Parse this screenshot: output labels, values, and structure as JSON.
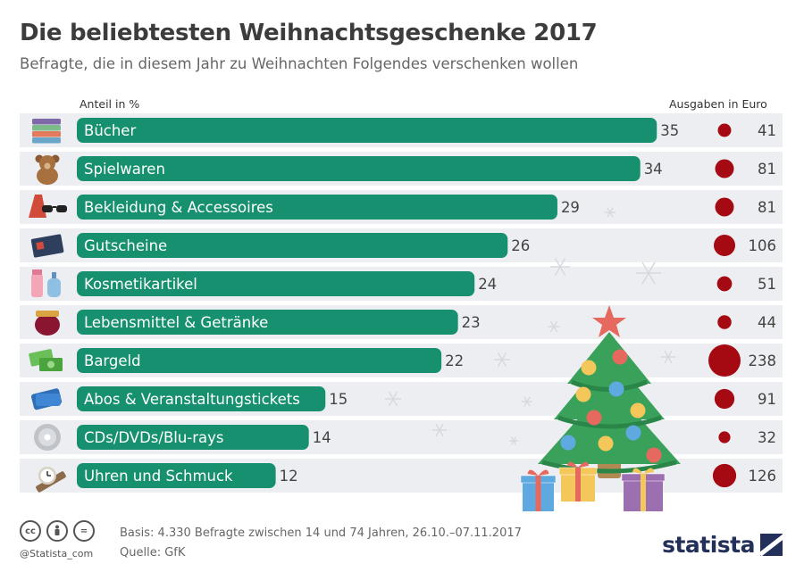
{
  "header": {
    "title": "Die beliebtesten Weihnachtsgeschenke 2017",
    "subtitle": "Befragte, die in diesem Jahr zu Weihnachten Folgendes verschenken wollen"
  },
  "chart_data": {
    "type": "bar",
    "orientation": "horizontal",
    "title": "Die beliebtesten Weihnachtsgeschenke 2017",
    "subtitle": "Befragte, die in diesem Jahr zu Weihnachten Folgendes verschenken wollen",
    "xlabel": "Anteil in %",
    "secondary_label": "Ausgaben in Euro",
    "categories": [
      "Bücher",
      "Spielwaren",
      "Bekleidung & Accessoires",
      "Gutscheine",
      "Kosmetikartikel",
      "Lebensmittel & Getränke",
      "Bargeld",
      "Abos & Veranstaltungstickets",
      "CDs/DVDs/Blu-rays",
      "Uhren und Schmuck"
    ],
    "values": [
      35,
      34,
      29,
      26,
      24,
      23,
      22,
      15,
      14,
      12
    ],
    "secondary_values": [
      41,
      81,
      81,
      106,
      51,
      44,
      238,
      91,
      32,
      126
    ],
    "icons": [
      "books-icon",
      "teddy-bear-icon",
      "dress-sunglasses-icon",
      "gift-card-icon",
      "cosmetics-icon",
      "food-jar-icon",
      "cash-icon",
      "tickets-icon",
      "disc-icon",
      "watch-icon"
    ],
    "colors": {
      "bar": "#16906e",
      "bubble": "#a50a12",
      "row_band": "#eceef2"
    }
  },
  "footer": {
    "handle": "@Statista_com",
    "basis": "Basis: 4.330 Befragte zwischen 14 und 74 Jahren, 26.10.–07.11.2017",
    "source": "Quelle: GfK",
    "logo": "statista",
    "license_icons": [
      "cc-icon",
      "by-icon",
      "nd-icon"
    ]
  }
}
